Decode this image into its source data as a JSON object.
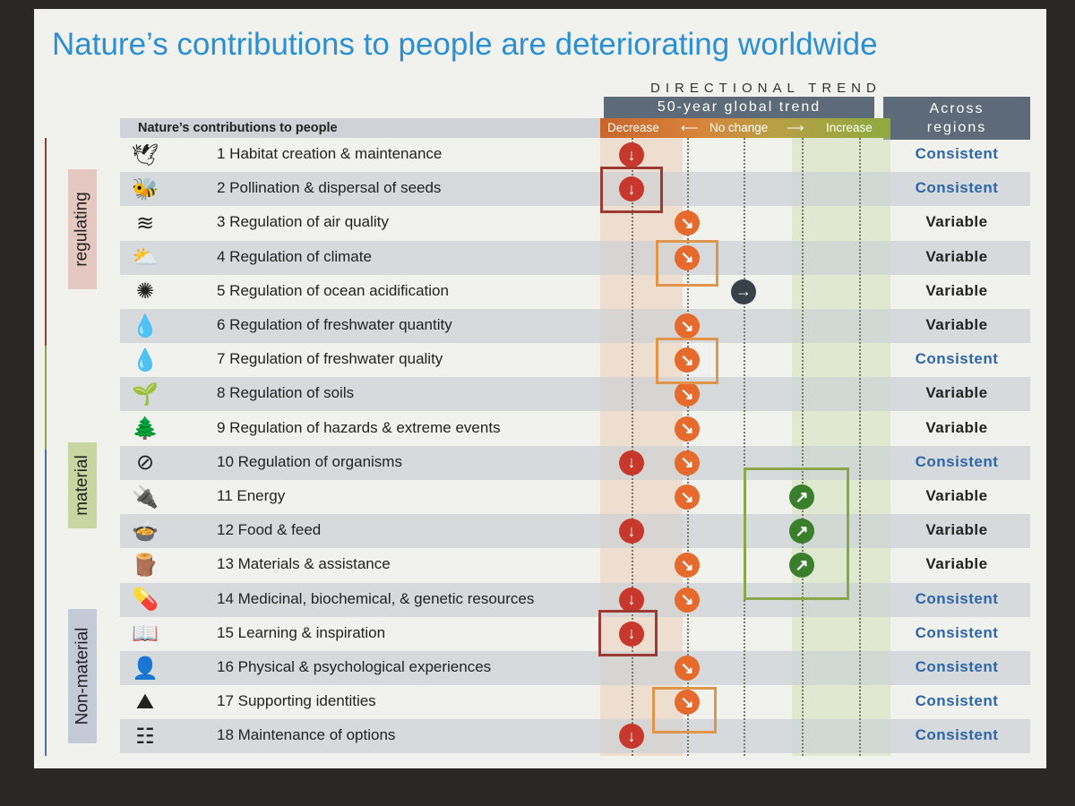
{
  "title": "Nature’s contributions to people are deteriorating worldwide",
  "header": {
    "directional_trend": "DIRECTIONAL TREND",
    "global_trend": "50-year global trend",
    "across_regions_line1": "Across",
    "across_regions_line2": "regions",
    "contributions_column": "Nature’s contributions to people",
    "scale_decrease": "Decrease",
    "scale_no_change": "No change",
    "scale_increase": "Increase"
  },
  "categories": [
    {
      "name": "regulating",
      "color": "#e5c9c0",
      "line_color": "#9d3a33"
    },
    {
      "name": "material",
      "color": "#c8d7a2",
      "line_color": "#8aa84a"
    },
    {
      "name": "Non-material",
      "color": "#c4cad8",
      "line_color": "#4a6fb0"
    }
  ],
  "colors": {
    "decrease": "#c8372c",
    "moderate_decrease": "#e56a2b",
    "no_change": "#36414a",
    "increase": "#3a7f2c",
    "consistent_text": "#2e66a8"
  },
  "rows": [
    {
      "label": "1 Habitat creation & maintenance",
      "icon": "bird-icon",
      "region": "Consistent",
      "trends": [
        "decrease"
      ]
    },
    {
      "label": "2 Pollination & dispersal of seeds",
      "icon": "bee-icon",
      "region": "Consistent",
      "trends": [
        "decrease"
      ]
    },
    {
      "label": "3 Regulation of air quality",
      "icon": "wind-icon",
      "region": "Variable",
      "trends": [
        "moderate-decrease"
      ]
    },
    {
      "label": "4 Regulation of climate",
      "icon": "sun-cloud-icon",
      "region": "Variable",
      "trends": [
        "moderate-decrease"
      ]
    },
    {
      "label": "5 Regulation of ocean acidification",
      "icon": "sea-urchin-icon",
      "region": "Variable",
      "trends": [
        "no-change"
      ]
    },
    {
      "label": "6 Regulation of freshwater quantity",
      "icon": "water-drops-icon",
      "region": "Variable",
      "trends": [
        "moderate-decrease"
      ]
    },
    {
      "label": "7 Regulation of freshwater quality",
      "icon": "water-drop-icon",
      "region": "Consistent",
      "trends": [
        "moderate-decrease"
      ]
    },
    {
      "label": "8 Regulation of soils",
      "icon": "soil-sprout-icon",
      "region": "Variable",
      "trends": [
        "moderate-decrease"
      ]
    },
    {
      "label": "9 Regulation of hazards & extreme events",
      "icon": "trees-icon",
      "region": "Variable",
      "trends": [
        "moderate-decrease"
      ]
    },
    {
      "label": "10 Regulation of organisms",
      "icon": "no-pest-icon",
      "region": "Consistent",
      "trends": [
        "decrease",
        "moderate-decrease"
      ]
    },
    {
      "label": "11 Energy",
      "icon": "energy-plug-icon",
      "region": "Variable",
      "trends": [
        "moderate-decrease",
        "increase"
      ]
    },
    {
      "label": "12 Food & feed",
      "icon": "food-bowl-icon",
      "region": "Variable",
      "trends": [
        "decrease",
        "increase"
      ]
    },
    {
      "label": "13 Materials & assistance",
      "icon": "logs-icon",
      "region": "Variable",
      "trends": [
        "moderate-decrease",
        "increase"
      ]
    },
    {
      "label": "14 Medicinal, biochemical, & genetic resources",
      "icon": "medicine-icon",
      "region": "Consistent",
      "trends": [
        "decrease",
        "moderate-decrease"
      ]
    },
    {
      "label": "15 Learning & inspiration",
      "icon": "book-icon",
      "region": "Consistent",
      "trends": [
        "decrease"
      ]
    },
    {
      "label": "16 Physical & psychological experiences",
      "icon": "head-icon",
      "region": "Consistent",
      "trends": [
        "moderate-decrease"
      ]
    },
    {
      "label": "17 Supporting identities",
      "icon": "landscape-icon",
      "region": "Consistent",
      "trends": [
        "moderate-decrease"
      ]
    },
    {
      "label": "18 Maintenance of options",
      "icon": "hierarchy-icon",
      "region": "Consistent",
      "trends": [
        "decrease"
      ]
    }
  ]
}
